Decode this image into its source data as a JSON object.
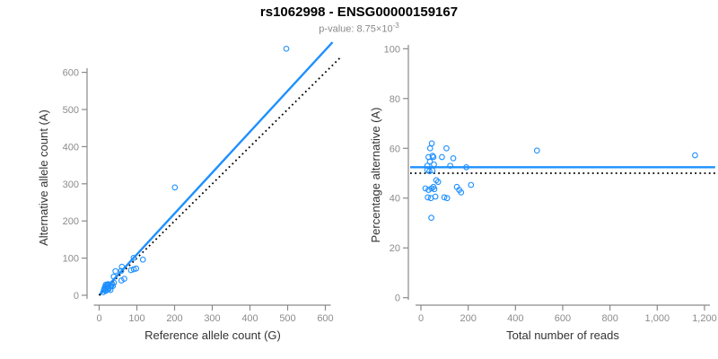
{
  "header": {
    "title": "rs1062998 - ENSG00000159167",
    "subtitle_main": "p-value: 8.75×10",
    "subtitle_exponent": "-3"
  },
  "colors": {
    "accent_blue": "#1E90FF",
    "dotted_black": "#000000",
    "axis_line_gray": "#8a8a8a",
    "tick_label_gray": "#8c8c8c",
    "axis_label_dark": "#333333"
  },
  "chart_data": [
    {
      "type": "scatter",
      "panel": "left",
      "xlabel": "Reference allele count (G)",
      "ylabel": "Alternative allele count (A)",
      "xlim": [
        0,
        640
      ],
      "ylim": [
        0,
        681
      ],
      "grid": false,
      "legend": "none",
      "xticks": [
        0,
        100,
        200,
        300,
        400,
        500,
        600
      ],
      "xtick_labels": [
        "0",
        "100",
        "200",
        "300",
        "400",
        "500",
        "600"
      ],
      "yticks": [
        0,
        100,
        200,
        300,
        400,
        500,
        600
      ],
      "ytick_labels": [
        "0",
        "100",
        "200",
        "300",
        "400",
        "500",
        "600"
      ],
      "lines": [
        {
          "name": "fit-line",
          "kind": "slope",
          "slope": 1.1,
          "style": "solid",
          "color": "#1E90FF"
        },
        {
          "name": "identity-line",
          "kind": "slope",
          "slope": 1.0,
          "style": "dotted",
          "color": "#000000"
        }
      ],
      "points": [
        [
          17.5,
          28.5
        ],
        [
          15.6,
          23.4
        ],
        [
          43.2,
          64.8
        ],
        [
          13.9,
          18.1
        ],
        [
          21.1,
          27.9
        ],
        [
          23.1,
          29.9
        ],
        [
          38.7,
          50.3
        ],
        [
          60.3,
          76.7
        ],
        [
          17.2,
          20.8
        ],
        [
          12.7,
          14.3
        ],
        [
          25.6,
          29.4
        ],
        [
          58.3,
          65.7
        ],
        [
          91.4,
          100.6
        ],
        [
          24.0,
          25.0
        ],
        [
          17.7,
          18.3
        ],
        [
          13.1,
          13.9
        ],
        [
          34.3,
          30.7
        ],
        [
          39.1,
          33.9
        ],
        [
          10.7,
          8.3
        ],
        [
          18.1,
          13.9
        ],
        [
          25.2,
          19.8
        ],
        [
          29.4,
          23.6
        ],
        [
          32.1,
          24.9
        ],
        [
          84.4,
          67.6
        ],
        [
          91.9,
          70.1
        ],
        [
          98.1,
          71.9
        ],
        [
          116.0,
          96.0
        ],
        [
          17.3,
          11.7
        ],
        [
          25.2,
          16.8
        ],
        [
          36.2,
          24.8
        ],
        [
          59.1,
          39.9
        ],
        [
          66.6,
          44.4
        ],
        [
          29.9,
          14.1
        ],
        [
          200.8,
          290.2
        ],
        [
          496.5,
          663.5
        ]
      ]
    },
    {
      "type": "scatter",
      "panel": "right",
      "xlabel": "Total number of reads",
      "ylabel": "Percentage alternative (A)",
      "xlim": [
        0,
        1245
      ],
      "ylim": [
        0,
        100
      ],
      "grid": false,
      "legend": "none",
      "xticks": [
        0,
        200,
        400,
        600,
        800,
        1000,
        1200
      ],
      "xtick_labels": [
        "0",
        "200",
        "400",
        "600",
        "800",
        "1,000",
        "1,200"
      ],
      "yticks": [
        0,
        20,
        40,
        60,
        80,
        100
      ],
      "ytick_labels": [
        "0",
        "20",
        "40",
        "60",
        "80",
        "100"
      ],
      "lines": [
        {
          "name": "mean-percentage-line",
          "kind": "hline",
          "y": 52.4,
          "style": "solid",
          "color": "#1E90FF"
        },
        {
          "name": "reference-50-line",
          "kind": "hline",
          "y": 50.0,
          "style": "dotted",
          "color": "#000000"
        }
      ],
      "points": [
        [
          46,
          62.0
        ],
        [
          39,
          60.0
        ],
        [
          108,
          60.0
        ],
        [
          32,
          56.5
        ],
        [
          49,
          57.0
        ],
        [
          53,
          56.5
        ],
        [
          89,
          56.5
        ],
        [
          137,
          56.0
        ],
        [
          38,
          54.7
        ],
        [
          27,
          53.0
        ],
        [
          55,
          53.5
        ],
        [
          124,
          53.0
        ],
        [
          192,
          52.4
        ],
        [
          49,
          51.1
        ],
        [
          36,
          50.8
        ],
        [
          27,
          51.3
        ],
        [
          65,
          47.2
        ],
        [
          73,
          46.5
        ],
        [
          19,
          43.9
        ],
        [
          32,
          43.3
        ],
        [
          45,
          43.9
        ],
        [
          53,
          44.5
        ],
        [
          57,
          43.6
        ],
        [
          152,
          44.5
        ],
        [
          162,
          43.3
        ],
        [
          170,
          42.3
        ],
        [
          212,
          45.3
        ],
        [
          29,
          40.3
        ],
        [
          42,
          40.0
        ],
        [
          61,
          40.6
        ],
        [
          99,
          40.3
        ],
        [
          111,
          40.0
        ],
        [
          44,
          32.1
        ],
        [
          491,
          59.1
        ],
        [
          1160,
          57.2
        ]
      ]
    }
  ]
}
